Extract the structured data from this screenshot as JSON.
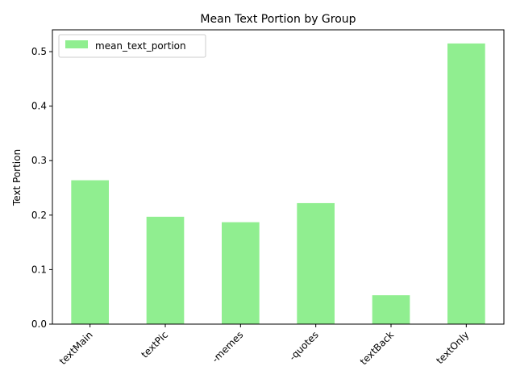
{
  "chart_data": {
    "type": "bar",
    "title": "Mean Text Portion by Group",
    "xlabel": "",
    "ylabel": "Text Portion",
    "categories": [
      "textMain",
      "textPic",
      "-memes",
      "-quotes",
      "textBack",
      "textOnly"
    ],
    "series": [
      {
        "name": "mean_text_portion",
        "values": [
          0.264,
          0.197,
          0.187,
          0.222,
          0.053,
          0.515
        ],
        "color": "#90ee90"
      }
    ],
    "ylim": [
      0,
      0.54
    ],
    "yticks": [
      0.0,
      0.1,
      0.2,
      0.3,
      0.4,
      0.5
    ],
    "ytick_labels": [
      "0.0",
      "0.1",
      "0.2",
      "0.3",
      "0.4",
      "0.5"
    ],
    "grid": false,
    "legend_position": "upper left",
    "x_tick_rotation": "45"
  }
}
